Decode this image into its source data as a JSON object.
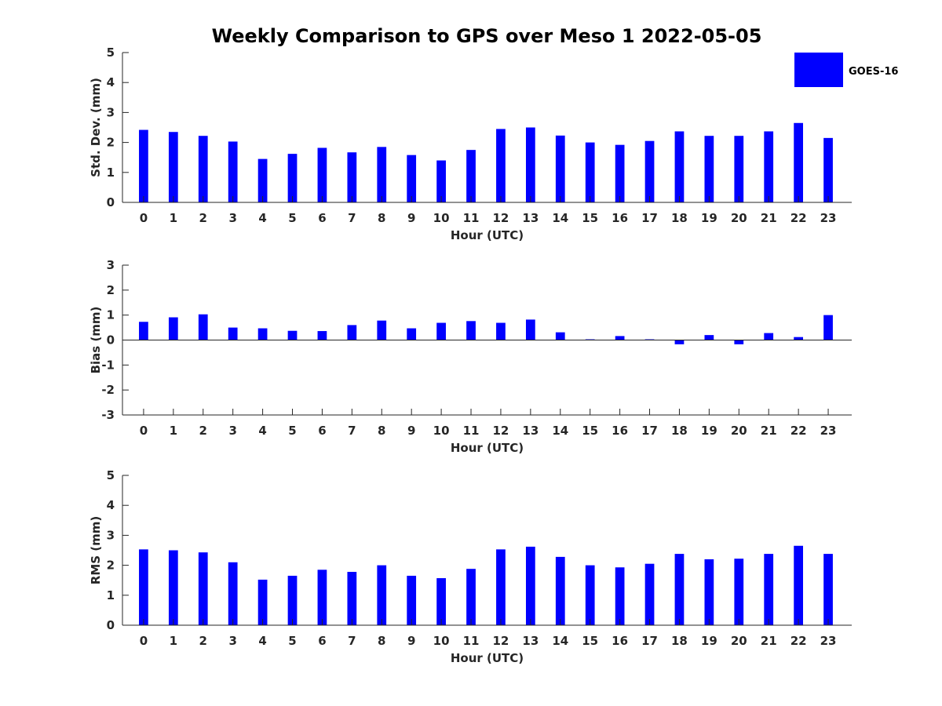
{
  "chart_data": {
    "title": "Weekly Comparison to GPS over Meso 1 2022-05-05",
    "type": "bar",
    "legend": {
      "placement": "top-right",
      "entries": [
        {
          "name": "GOES-16",
          "color": "#0000ff"
        }
      ]
    },
    "categories": [
      "0",
      "1",
      "2",
      "3",
      "4",
      "5",
      "6",
      "7",
      "8",
      "9",
      "10",
      "11",
      "12",
      "13",
      "14",
      "15",
      "16",
      "17",
      "18",
      "19",
      "20",
      "21",
      "22",
      "23"
    ],
    "panels": [
      {
        "xlabel": "Hour (UTC)",
        "ylabel": "Std. Dev. (mm)",
        "ylim": [
          0,
          5
        ],
        "yticks": [
          0,
          1,
          2,
          3,
          4,
          5
        ],
        "series": [
          {
            "name": "GOES-16",
            "color": "#0000ff",
            "values": [
              2.42,
              2.35,
              2.22,
              2.03,
              1.45,
              1.62,
              1.82,
              1.67,
              1.85,
              1.58,
              1.4,
              1.75,
              2.45,
              2.5,
              2.23,
              2.0,
              1.92,
              2.05,
              2.37,
              2.22,
              2.22,
              2.37,
              2.65,
              2.15
            ]
          }
        ]
      },
      {
        "xlabel": "Hour (UTC)",
        "ylabel": "Bias (mm)",
        "ylim": [
          -3,
          3
        ],
        "yticks": [
          -3,
          -2,
          -1,
          0,
          1,
          2,
          3
        ],
        "series": [
          {
            "name": "GOES-16",
            "color": "#0000ff",
            "values": [
              0.73,
              0.91,
              1.03,
              0.5,
              0.47,
              0.37,
              0.36,
              0.6,
              0.78,
              0.47,
              0.69,
              0.76,
              0.69,
              0.82,
              0.31,
              0.03,
              0.16,
              0.03,
              -0.17,
              0.2,
              -0.17,
              0.28,
              0.12,
              1.0
            ]
          }
        ]
      },
      {
        "xlabel": "Hour (UTC)",
        "ylabel": "RMS (mm)",
        "ylim": [
          0,
          5
        ],
        "yticks": [
          0,
          1,
          2,
          3,
          4,
          5
        ],
        "series": [
          {
            "name": "GOES-16",
            "color": "#0000ff",
            "values": [
              2.53,
              2.5,
              2.43,
              2.1,
              1.52,
              1.65,
              1.85,
              1.78,
              2.0,
              1.65,
              1.57,
              1.88,
              2.53,
              2.62,
              2.28,
              2.0,
              1.93,
              2.05,
              2.38,
              2.2,
              2.22,
              2.38,
              2.65,
              2.38
            ]
          }
        ]
      }
    ]
  }
}
